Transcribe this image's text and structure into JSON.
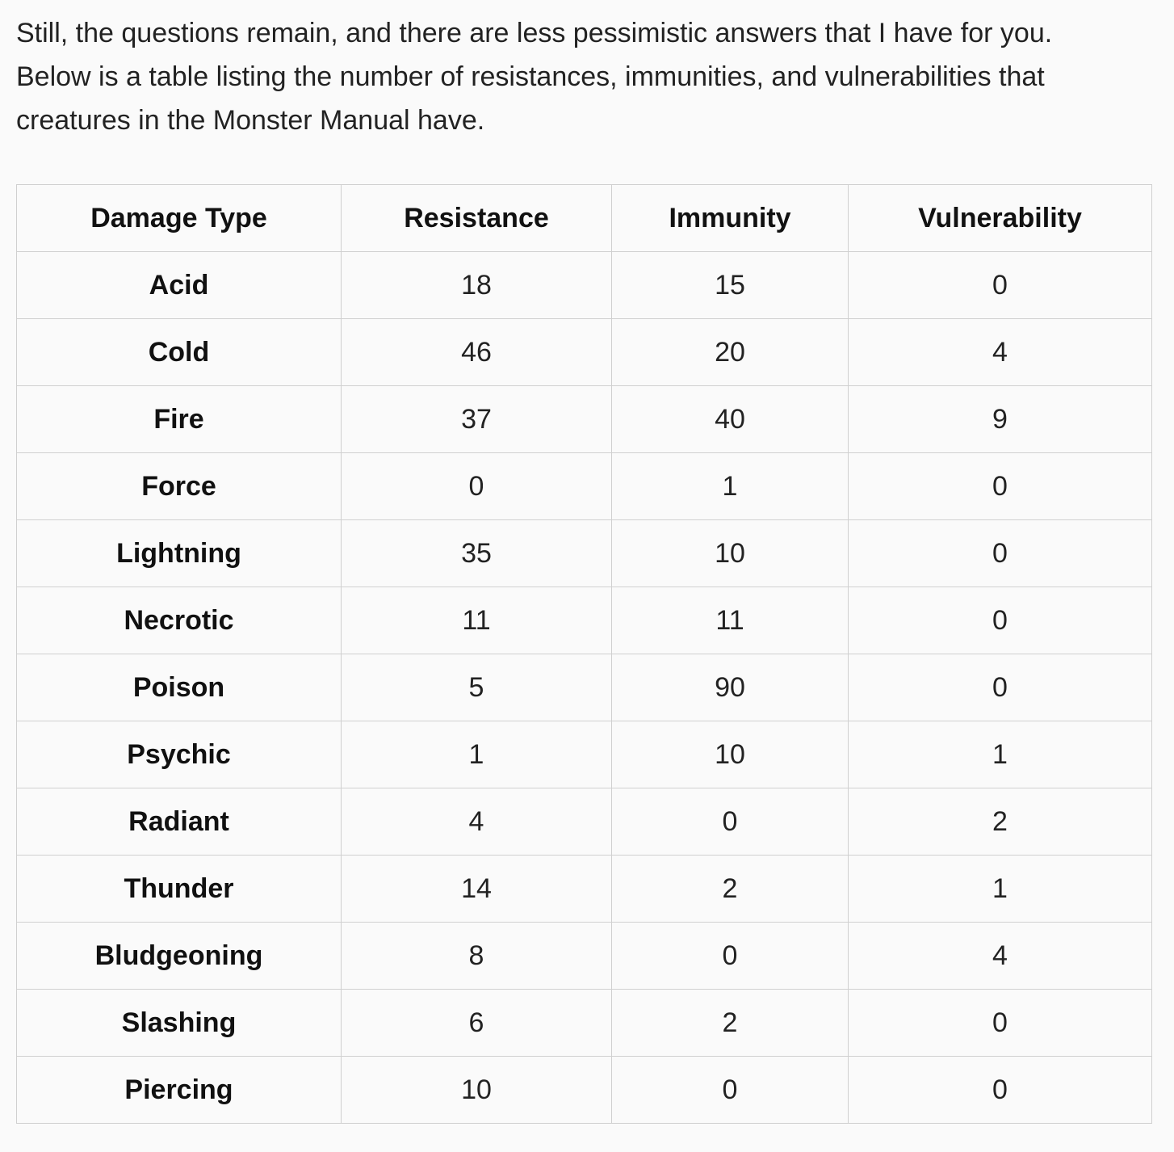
{
  "intro": {
    "line1": "Still, the questions remain, and there are less pessimistic answers that I have for you.",
    "line2": "Below is a table listing the number of resistances, immunities, and vulnerabilities that",
    "line3": "creatures in the Monster Manual have."
  },
  "table": {
    "headers": [
      "Damage Type",
      "Resistance",
      "Immunity",
      "Vulnerability"
    ],
    "rows": [
      [
        "Acid",
        "18",
        "15",
        "0"
      ],
      [
        "Cold",
        "46",
        "20",
        "4"
      ],
      [
        "Fire",
        "37",
        "40",
        "9"
      ],
      [
        "Force",
        "0",
        "1",
        "0"
      ],
      [
        "Lightning",
        "35",
        "10",
        "0"
      ],
      [
        "Necrotic",
        "11",
        "11",
        "0"
      ],
      [
        "Poison",
        "5",
        "90",
        "0"
      ],
      [
        "Psychic",
        "1",
        "10",
        "1"
      ],
      [
        "Radiant",
        "4",
        "0",
        "2"
      ],
      [
        "Thunder",
        "14",
        "2",
        "1"
      ],
      [
        "Bludgeoning",
        "8",
        "0",
        "4"
      ],
      [
        "Slashing",
        "6",
        "2",
        "0"
      ],
      [
        "Piercing",
        "10",
        "0",
        "0"
      ]
    ]
  }
}
